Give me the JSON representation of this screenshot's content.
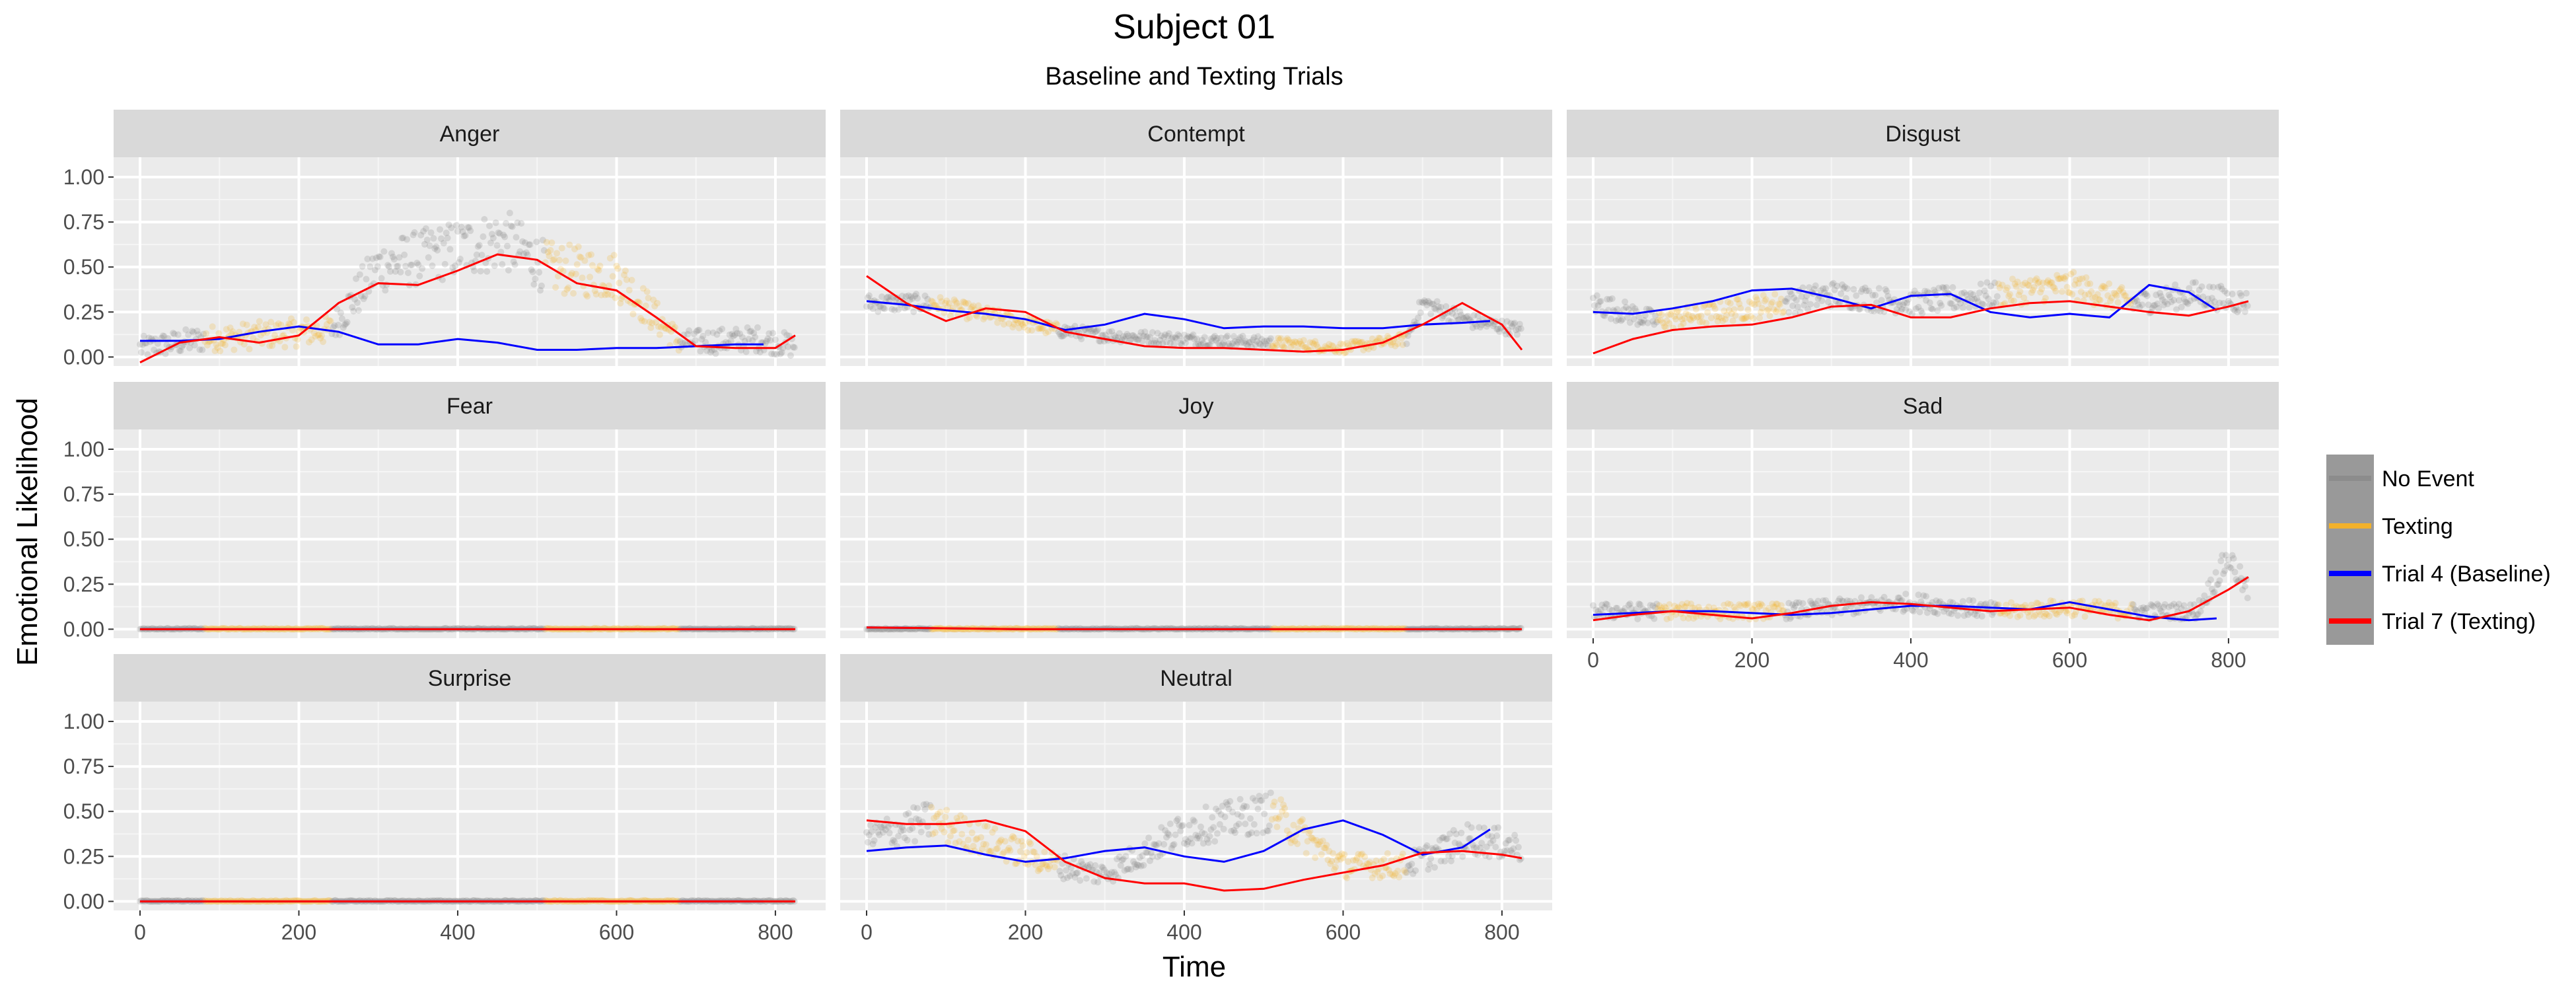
{
  "chart_data": {
    "type": "line",
    "title": "Subject 01",
    "subtitle": "Baseline and Texting Trials",
    "xlabel": "Time",
    "ylabel": "Emotional Likelihood",
    "xlim": [
      0,
      830
    ],
    "ylim": [
      -0.05,
      1.0
    ],
    "x_ticks": [
      0,
      200,
      400,
      600,
      800
    ],
    "y_ticks": [
      0.0,
      0.25,
      0.5,
      0.75,
      1.0
    ],
    "y_tick_labels": [
      "0.00",
      "0.25",
      "0.50",
      "0.75",
      "1.00"
    ],
    "grid": true,
    "legend_position": "right",
    "facet_layout": "3x3 grid, facet labels on top strips",
    "legend": [
      {
        "label": "No Event",
        "color": "#8c8c8c"
      },
      {
        "label": "Texting",
        "color": "#f2b12b"
      },
      {
        "label": "Trial 4 (Baseline)",
        "color": "#0000ff"
      },
      {
        "label": "Trial 7 (Texting)",
        "color": "#ff0000"
      }
    ],
    "texting_intervals": [
      [
        80,
        240
      ],
      [
        510,
        680
      ]
    ],
    "panels": [
      {
        "label": "Anger",
        "series": [
          {
            "name": "Trial 4 (Baseline)",
            "x": [
              0,
              50,
              100,
              150,
              200,
              250,
              300,
              350,
              400,
              450,
              500,
              550,
              600,
              650,
              700,
              750,
              785
            ],
            "y": [
              0.09,
              0.09,
              0.1,
              0.14,
              0.17,
              0.14,
              0.07,
              0.07,
              0.1,
              0.08,
              0.04,
              0.04,
              0.05,
              0.05,
              0.06,
              0.07,
              0.07
            ]
          },
          {
            "name": "Trial 7 (Texting)",
            "x": [
              0,
              50,
              100,
              150,
              200,
              250,
              300,
              350,
              400,
              450,
              500,
              550,
              600,
              650,
              700,
              750,
              800,
              825
            ],
            "y": [
              -0.03,
              0.08,
              0.11,
              0.08,
              0.12,
              0.3,
              0.41,
              0.4,
              0.48,
              0.57,
              0.54,
              0.41,
              0.37,
              0.22,
              0.06,
              0.05,
              0.05,
              0.12
            ]
          }
        ],
        "observed_level": {
          "x": [
            0,
            80,
            240,
            300,
            400,
            460,
            510,
            600,
            680,
            780,
            825
          ],
          "y": [
            0.05,
            0.1,
            0.15,
            0.5,
            0.6,
            0.65,
            0.5,
            0.45,
            0.08,
            0.1,
            0.06
          ]
        }
      },
      {
        "label": "Contempt",
        "series": [
          {
            "name": "Trial 4 (Baseline)",
            "x": [
              0,
              50,
              100,
              150,
              200,
              250,
              300,
              350,
              400,
              450,
              500,
              550,
              600,
              650,
              700,
              750,
              785
            ],
            "y": [
              0.31,
              0.29,
              0.26,
              0.24,
              0.21,
              0.15,
              0.18,
              0.24,
              0.21,
              0.16,
              0.17,
              0.17,
              0.16,
              0.16,
              0.18,
              0.19,
              0.2
            ]
          },
          {
            "name": "Trial 7 (Texting)",
            "x": [
              0,
              50,
              100,
              150,
              200,
              250,
              300,
              350,
              400,
              450,
              500,
              550,
              600,
              650,
              700,
              750,
              800,
              825
            ],
            "y": [
              0.45,
              0.3,
              0.2,
              0.27,
              0.25,
              0.14,
              0.1,
              0.06,
              0.05,
              0.05,
              0.04,
              0.03,
              0.04,
              0.08,
              0.18,
              0.3,
              0.18,
              0.04
            ]
          }
        ],
        "observed_level": {
          "x": [
            0,
            80,
            240,
            300,
            400,
            510,
            600,
            680,
            700,
            760,
            825
          ],
          "y": [
            0.3,
            0.3,
            0.15,
            0.12,
            0.1,
            0.08,
            0.05,
            0.1,
            0.3,
            0.2,
            0.15
          ]
        }
      },
      {
        "label": "Disgust",
        "series": [
          {
            "name": "Trial 4 (Baseline)",
            "x": [
              0,
              50,
              100,
              150,
              200,
              250,
              300,
              350,
              400,
              450,
              500,
              550,
              600,
              650,
              700,
              750,
              785
            ],
            "y": [
              0.25,
              0.24,
              0.27,
              0.31,
              0.37,
              0.38,
              0.33,
              0.27,
              0.34,
              0.35,
              0.25,
              0.22,
              0.24,
              0.22,
              0.4,
              0.36,
              0.26
            ]
          },
          {
            "name": "Trial 7 (Texting)",
            "x": [
              0,
              50,
              100,
              150,
              200,
              250,
              300,
              350,
              400,
              450,
              500,
              550,
              600,
              650,
              700,
              750,
              800,
              825
            ],
            "y": [
              0.02,
              0.1,
              0.15,
              0.17,
              0.18,
              0.22,
              0.28,
              0.29,
              0.22,
              0.22,
              0.27,
              0.3,
              0.31,
              0.28,
              0.25,
              0.23,
              0.28,
              0.31
            ]
          }
        ],
        "observed_level": {
          "x": [
            0,
            80,
            240,
            300,
            400,
            510,
            600,
            680,
            760,
            825
          ],
          "y": [
            0.3,
            0.2,
            0.3,
            0.35,
            0.3,
            0.35,
            0.4,
            0.3,
            0.35,
            0.3
          ]
        }
      },
      {
        "label": "Fear",
        "series": [
          {
            "name": "Trial 4 (Baseline)",
            "x": [
              0,
              200,
              400,
              600,
              785
            ],
            "y": [
              0.0,
              0.0,
              0.0,
              0.0,
              0.0
            ]
          },
          {
            "name": "Trial 7 (Texting)",
            "x": [
              0,
              200,
              400,
              600,
              825
            ],
            "y": [
              0.0,
              0.0,
              0.0,
              0.0,
              0.0
            ]
          }
        ],
        "observed_level": {
          "x": [
            0,
            825
          ],
          "y": [
            0.0,
            0.0
          ]
        }
      },
      {
        "label": "Joy",
        "series": [
          {
            "name": "Trial 4 (Baseline)",
            "x": [
              0,
              200,
              400,
              600,
              785
            ],
            "y": [
              0.01,
              0.0,
              0.0,
              0.0,
              0.0
            ]
          },
          {
            "name": "Trial 7 (Texting)",
            "x": [
              0,
              200,
              400,
              600,
              825
            ],
            "y": [
              0.01,
              0.0,
              0.0,
              0.0,
              0.0
            ]
          }
        ],
        "observed_level": {
          "x": [
            0,
            825
          ],
          "y": [
            0.0,
            0.0
          ]
        }
      },
      {
        "label": "Sad",
        "series": [
          {
            "name": "Trial 4 (Baseline)",
            "x": [
              0,
              50,
              100,
              150,
              200,
              250,
              300,
              350,
              400,
              450,
              500,
              550,
              600,
              650,
              700,
              750,
              785
            ],
            "y": [
              0.08,
              0.09,
              0.1,
              0.1,
              0.09,
              0.08,
              0.09,
              0.11,
              0.13,
              0.13,
              0.12,
              0.11,
              0.15,
              0.11,
              0.07,
              0.05,
              0.06
            ]
          },
          {
            "name": "Trial 7 (Texting)",
            "x": [
              0,
              50,
              100,
              150,
              200,
              250,
              300,
              350,
              400,
              450,
              500,
              550,
              600,
              650,
              700,
              750,
              800,
              825
            ],
            "y": [
              0.05,
              0.08,
              0.1,
              0.08,
              0.06,
              0.09,
              0.13,
              0.15,
              0.14,
              0.12,
              0.1,
              0.11,
              0.12,
              0.08,
              0.05,
              0.1,
              0.22,
              0.29
            ]
          }
        ],
        "observed_level": {
          "x": [
            0,
            80,
            240,
            400,
            510,
            600,
            680,
            760,
            800,
            825
          ],
          "y": [
            0.1,
            0.1,
            0.1,
            0.15,
            0.1,
            0.12,
            0.1,
            0.1,
            0.4,
            0.2
          ]
        }
      },
      {
        "label": "Surprise",
        "series": [
          {
            "name": "Trial 4 (Baseline)",
            "x": [
              0,
              200,
              400,
              600,
              785
            ],
            "y": [
              0.0,
              0.0,
              0.0,
              0.0,
              0.0
            ]
          },
          {
            "name": "Trial 7 (Texting)",
            "x": [
              0,
              200,
              400,
              600,
              825
            ],
            "y": [
              0.0,
              0.0,
              0.0,
              0.0,
              0.0
            ]
          }
        ],
        "observed_level": {
          "x": [
            0,
            825
          ],
          "y": [
            0.0,
            0.0
          ]
        }
      },
      {
        "label": "Neutral",
        "series": [
          {
            "name": "Trial 4 (Baseline)",
            "x": [
              0,
              50,
              100,
              150,
              200,
              250,
              300,
              350,
              400,
              450,
              500,
              550,
              600,
              650,
              700,
              750,
              785
            ],
            "y": [
              0.28,
              0.3,
              0.31,
              0.26,
              0.22,
              0.24,
              0.28,
              0.3,
              0.25,
              0.22,
              0.28,
              0.4,
              0.45,
              0.37,
              0.26,
              0.3,
              0.4
            ]
          },
          {
            "name": "Trial 7 (Texting)",
            "x": [
              0,
              50,
              100,
              150,
              200,
              250,
              300,
              350,
              400,
              450,
              500,
              550,
              600,
              650,
              700,
              750,
              800,
              825
            ],
            "y": [
              0.45,
              0.43,
              0.43,
              0.45,
              0.39,
              0.22,
              0.13,
              0.1,
              0.1,
              0.06,
              0.07,
              0.12,
              0.16,
              0.2,
              0.27,
              0.28,
              0.26,
              0.24
            ]
          }
        ],
        "observed_level": {
          "x": [
            0,
            80,
            240,
            300,
            400,
            510,
            600,
            680,
            760,
            825
          ],
          "y": [
            0.35,
            0.45,
            0.2,
            0.15,
            0.4,
            0.5,
            0.2,
            0.2,
            0.35,
            0.3
          ]
        }
      }
    ]
  }
}
